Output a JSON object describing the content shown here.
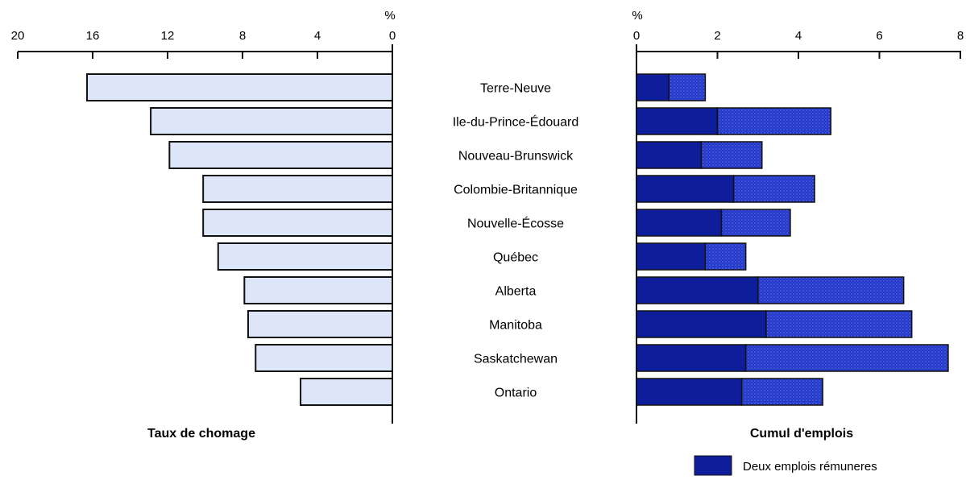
{
  "chart_data": [
    {
      "type": "bar",
      "orientation": "horizontal",
      "direction": "right-to-left",
      "unit": "%",
      "caption": "Taux de chomage",
      "xlim": [
        20,
        0
      ],
      "xticks": [
        "20",
        "16",
        "12",
        "8",
        "4",
        "0"
      ],
      "categories": [
        "Terre-Neuve",
        "Ile-du-Prince-Édouard",
        "Nouveau-Brunswick",
        "Colombie-Britannique",
        "Nouvelle-Écosse",
        "Québec",
        "Alberta",
        "Manitoba",
        "Saskatchewan",
        "Ontario"
      ],
      "values": [
        16.3,
        12.9,
        11.9,
        10.1,
        10.1,
        9.3,
        7.9,
        7.7,
        7.3,
        4.9
      ],
      "colors": {
        "bar": "#dde6f8",
        "edge": "#111111"
      }
    },
    {
      "type": "bar",
      "orientation": "horizontal",
      "stacked": true,
      "unit": "%",
      "caption": "Cumul d'emplois",
      "xlim": [
        0,
        8
      ],
      "xticks": [
        "0",
        "2",
        "4",
        "6",
        "8"
      ],
      "categories": [
        "Terre-Neuve",
        "Ile-du-Prince-Édouard",
        "Nouveau-Brunswick",
        "Colombie-Britannique",
        "Nouvelle-Écosse",
        "Québec",
        "Alberta",
        "Manitoba",
        "Saskatchewan",
        "Ontario"
      ],
      "series": [
        {
          "name": "Deux emplois rémuneres",
          "values": [
            0.8,
            2.0,
            1.6,
            2.4,
            2.1,
            1.7,
            3.0,
            3.2,
            2.7,
            2.6
          ],
          "color": "#0e1e9a"
        },
        {
          "values": [
            0.9,
            2.8,
            1.5,
            2.0,
            1.7,
            1.0,
            3.6,
            3.6,
            5.0,
            2.0
          ],
          "color": "#2438c8"
        }
      ],
      "legend_position": "bottom-right"
    }
  ]
}
